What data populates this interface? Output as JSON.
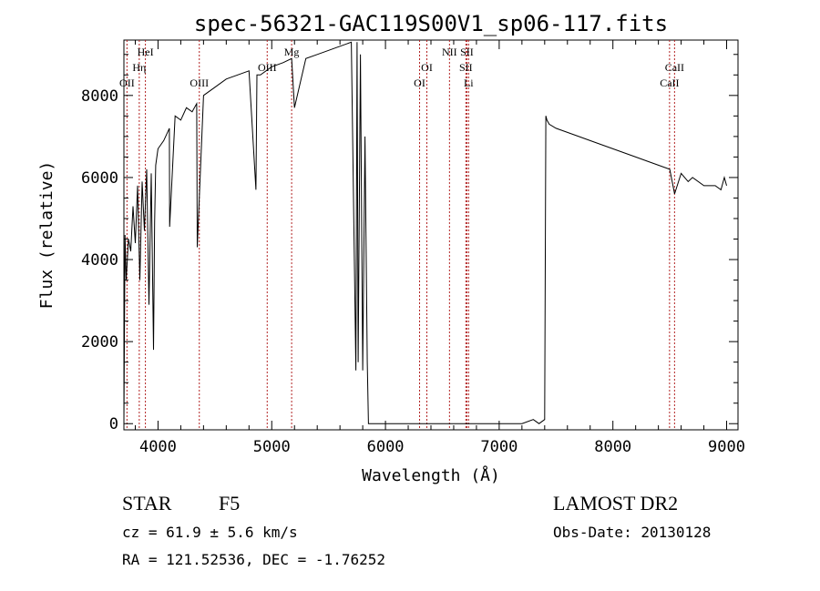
{
  "chart_data": {
    "type": "line",
    "title": "spec-56321-GAC119S00V1_sp06-117.fits",
    "xlabel": "Wavelength (Å)",
    "ylabel": "Flux (relative)",
    "xlim": [
      3700,
      9100
    ],
    "ylim": [
      -150,
      9350
    ],
    "xticks": [
      4000,
      5000,
      6000,
      7000,
      8000,
      9000
    ],
    "yticks": [
      0,
      2000,
      4000,
      6000,
      8000
    ],
    "grid": false,
    "series": [
      {
        "x": [
          3700,
          3710,
          3720,
          3740,
          3760,
          3780,
          3800,
          3820,
          3840,
          3860,
          3880,
          3900,
          3920,
          3940,
          3960,
          3970,
          3980,
          4000,
          4050,
          4100,
          4102,
          4150,
          4200,
          4250,
          4300,
          4340,
          4345,
          4400,
          4500,
          4600,
          4700,
          4800,
          4861,
          4870,
          4900,
          5000,
          5100,
          5175,
          5200,
          5300,
          5400,
          5500,
          5600,
          5700,
          5740,
          5750,
          5760,
          5780,
          5800,
          5820,
          5840,
          5850,
          5900,
          6000,
          6500,
          7000,
          7200,
          7300,
          7350,
          7400,
          7410,
          7420,
          7440,
          7500,
          7600,
          7700,
          7800,
          7900,
          8000,
          8100,
          8200,
          8300,
          8400,
          8500,
          8542,
          8600,
          8662,
          8700,
          8800,
          8900,
          8950,
          8980,
          9000
        ],
        "y": [
          0,
          4600,
          3500,
          4500,
          4200,
          5300,
          4400,
          5800,
          3500,
          5900,
          4700,
          6200,
          2900,
          6100,
          1800,
          4900,
          6300,
          6700,
          6900,
          7200,
          4800,
          7500,
          7400,
          7700,
          7600,
          7800,
          4300,
          8000,
          8200,
          8400,
          8500,
          8600,
          5700,
          8500,
          8500,
          8700,
          8800,
          8900,
          7700,
          8900,
          9000,
          9100,
          9200,
          9300,
          1300,
          9300,
          1500,
          9000,
          1300,
          7000,
          1500,
          0,
          0,
          0,
          0,
          0,
          0,
          100,
          0,
          100,
          7500,
          7400,
          7300,
          7200,
          7100,
          7000,
          6900,
          6800,
          6700,
          6600,
          6500,
          6400,
          6300,
          6200,
          5600,
          6100,
          5900,
          6000,
          5800,
          5800,
          5700,
          6000,
          5800
        ]
      }
    ],
    "lines": [
      {
        "x": 3727,
        "label": "OII",
        "row": 2
      },
      {
        "x": 3835,
        "label": "Hη",
        "row": 1
      },
      {
        "x": 3889,
        "label": "HeI",
        "row": 0
      },
      {
        "x": 4363,
        "label": "OIII",
        "row": 2
      },
      {
        "x": 4960,
        "label": "OIII",
        "row": 1
      },
      {
        "x": 5175,
        "label": "Mg",
        "row": 0
      },
      {
        "x": 6300,
        "label": "OI",
        "row": 2
      },
      {
        "x": 6364,
        "label": "OI",
        "row": 1
      },
      {
        "x": 6563,
        "label": "NII",
        "row": 0
      },
      {
        "x": 6716,
        "label": "SII",
        "row": 0
      },
      {
        "x": 6707,
        "label": "SII",
        "row": 1
      },
      {
        "x": 6731,
        "label": "Li",
        "row": 2
      },
      {
        "x": 8498,
        "label": "CaII",
        "row": 2
      },
      {
        "x": 8542,
        "label": "CaII",
        "row": 1
      }
    ],
    "line_color": "#b22222",
    "series_color": "#000000"
  },
  "footer": {
    "class_label": "STAR",
    "subclass": "F5",
    "cz_text": "cz = 61.9 ± 5.6 km/s",
    "radec_text": "RA = 121.52536, DEC =  -1.76252",
    "survey": "LAMOST DR2",
    "obs_date": "Obs-Date: 20130128"
  }
}
